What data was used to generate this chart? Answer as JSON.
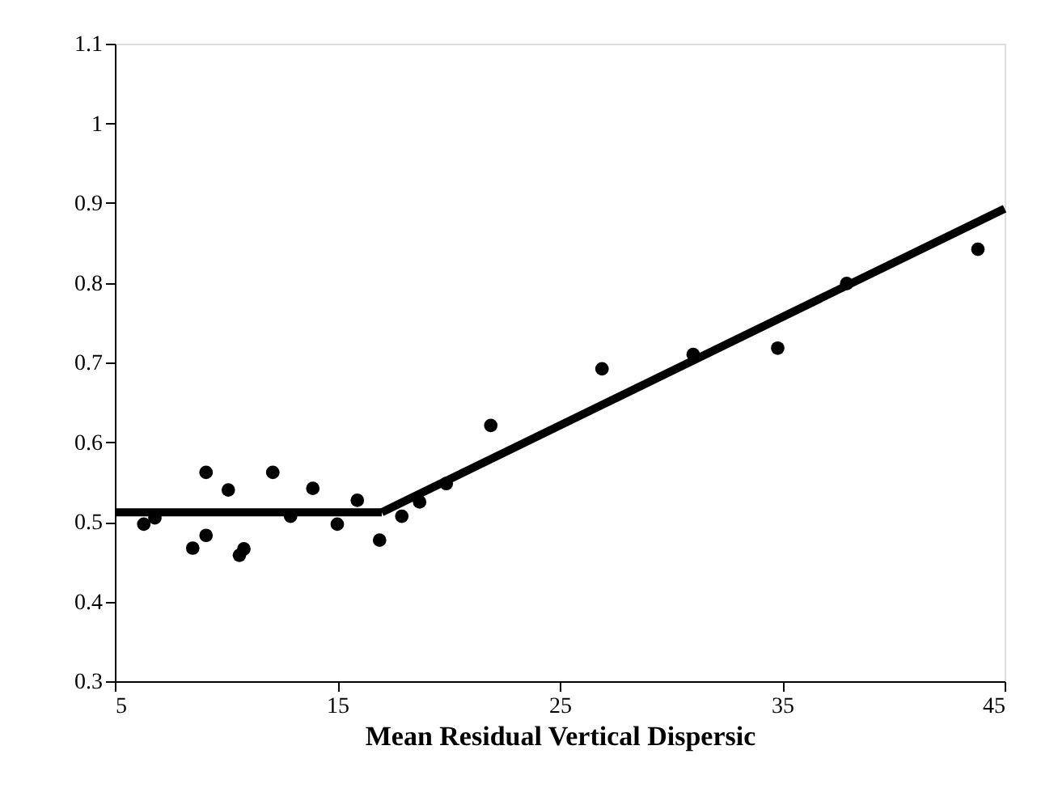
{
  "chart_data": {
    "type": "scatter",
    "xlabel": "Mean     Residual  Vertical  Dispersic",
    "xlim": [
      5,
      45
    ],
    "xticks": [
      5,
      15,
      25,
      35,
      45
    ],
    "ylim": [
      0.3,
      1.1
    ],
    "yticks": [
      0.3,
      0.4,
      0.5,
      0.6,
      0.7,
      0.8,
      0.9,
      1,
      1.1
    ],
    "grid": false,
    "marker": "circle",
    "series": [
      {
        "color": "#000000",
        "x": [
          6.3,
          6.8,
          8.5,
          9.1,
          9.1,
          10.1,
          10.6,
          10.8,
          12.1,
          12.9,
          13.9,
          15.0,
          15.9,
          16.9,
          17.9,
          18.7,
          19.9,
          21.9,
          26.9,
          31.0,
          34.8,
          37.9,
          43.8
        ],
        "values": [
          0.497,
          0.505,
          0.467,
          0.483,
          0.562,
          0.54,
          0.458,
          0.466,
          0.562,
          0.507,
          0.542,
          0.497,
          0.527,
          0.477,
          0.507,
          0.525,
          0.548,
          0.621,
          0.692,
          0.71,
          0.718,
          0.799,
          0.842
        ]
      },
      {
        "type": "line",
        "marker": "none",
        "color": "#000000",
        "x": [
          5,
          17
        ],
        "values": [
          0.512,
          0.512
        ]
      },
      {
        "type": "line",
        "marker": "none",
        "color": "#000000",
        "x": [
          17,
          45
        ],
        "values": [
          0.512,
          0.893
        ]
      }
    ]
  }
}
